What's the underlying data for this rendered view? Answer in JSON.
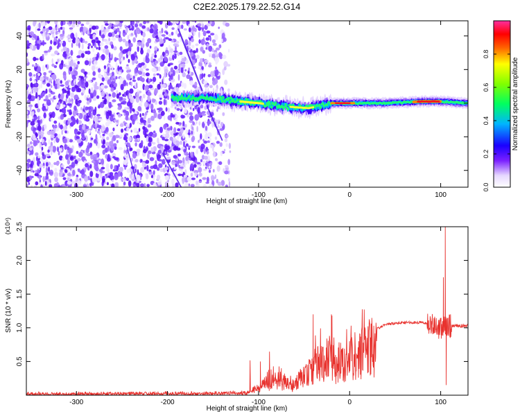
{
  "figure_title": "C2E2.2025.179.22.52.G14",
  "chart_data": [
    {
      "type": "heatmap",
      "xlabel": "Height of straight line (km)",
      "ylabel": "Frequency (Hz)",
      "xlim": [
        -355,
        130
      ],
      "ylim": [
        -50,
        49
      ],
      "x_ticks": [
        -300,
        -200,
        -100,
        0,
        100
      ],
      "y_ticks": [
        40,
        20,
        0,
        -20,
        -40
      ],
      "colorbar": {
        "label": "Normalized spectral amplitude",
        "range": [
          0,
          1
        ],
        "ticks": [
          "0.0",
          "0.2",
          "0.4",
          "0.6",
          "0.8"
        ]
      },
      "ridge": {
        "description_points": [
          {
            "x": -195,
            "y": 3
          },
          {
            "x": -150,
            "y": 3
          },
          {
            "x": -120,
            "y": 1
          },
          {
            "x": -100,
            "y": 0
          },
          {
            "x": -70,
            "y": -2
          },
          {
            "x": -45,
            "y": -3
          },
          {
            "x": -20,
            "y": 0
          },
          {
            "x": 0,
            "y": 0
          },
          {
            "x": 40,
            "y": 0
          },
          {
            "x": 80,
            "y": 1
          },
          {
            "x": 100,
            "y": 1
          },
          {
            "x": 130,
            "y": 0
          }
        ]
      },
      "noise_region_xmax": -130
    },
    {
      "type": "line",
      "xlabel": "Height of straight line (km)",
      "ylabel": "SNR (10 * v/v)",
      "y_multiplier": "(x10⁴)",
      "xlim": [
        -355,
        130
      ],
      "ylim": [
        0,
        2.5
      ],
      "x_ticks": [
        -300,
        -200,
        -100,
        0,
        100
      ],
      "y_ticks": [
        "0.5",
        "1.0",
        "1.5",
        "2.0",
        "2.5"
      ],
      "series": [
        {
          "color": "#e8322e",
          "envelope": [
            {
              "x": -355,
              "y": 0.02
            },
            {
              "x": -250,
              "y": 0.03
            },
            {
              "x": -150,
              "y": 0.03
            },
            {
              "x": -110,
              "y": 0.05
            },
            {
              "x": -100,
              "y": 0.15
            },
            {
              "x": -90,
              "y": 0.3
            },
            {
              "x": -75,
              "y": 0.3
            },
            {
              "x": -60,
              "y": 0.2
            },
            {
              "x": -45,
              "y": 0.45
            },
            {
              "x": -30,
              "y": 0.65
            },
            {
              "x": -20,
              "y": 0.75
            },
            {
              "x": -10,
              "y": 0.6
            },
            {
              "x": 0,
              "y": 0.7
            },
            {
              "x": 10,
              "y": 0.8
            },
            {
              "x": 25,
              "y": 0.95
            },
            {
              "x": 40,
              "y": 1.05
            },
            {
              "x": 60,
              "y": 1.08
            },
            {
              "x": 80,
              "y": 1.08
            },
            {
              "x": 90,
              "y": 1.05
            },
            {
              "x": 100,
              "y": 1.0
            },
            {
              "x": 110,
              "y": 1.03
            },
            {
              "x": 130,
              "y": 1.03
            }
          ],
          "spikes": [
            {
              "x": -98,
              "y": 0.5
            },
            {
              "x": -75,
              "y": 0.4
            },
            {
              "x": -40,
              "y": 1.2
            },
            {
              "x": -20,
              "y": 1.2
            },
            {
              "x": 90,
              "y": 1.1
            },
            {
              "x": 103,
              "y": 1.75
            },
            {
              "x": 105,
              "y": 2.5
            },
            {
              "x": 106,
              "y": 0.15
            }
          ]
        }
      ]
    }
  ]
}
